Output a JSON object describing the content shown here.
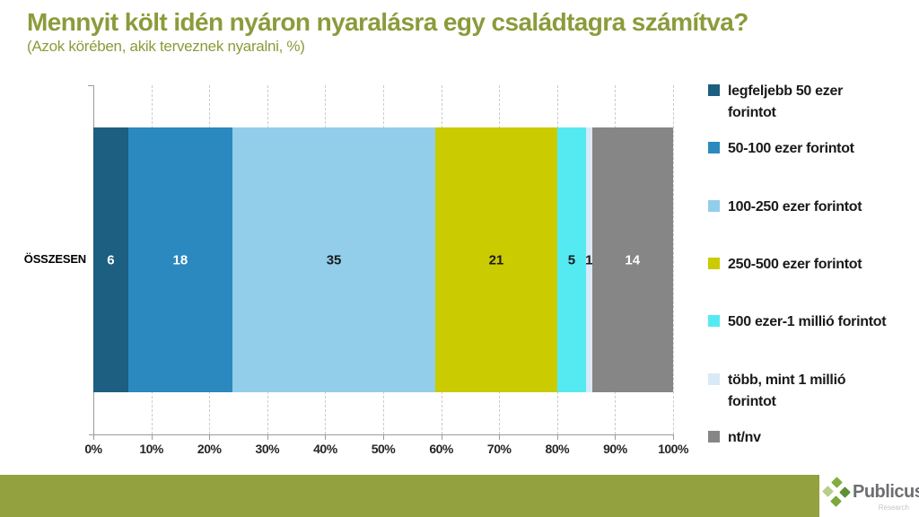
{
  "header": {
    "title": "Mennyit költ idén nyáron nyaralásra egy családtagra számítva?",
    "subtitle": "(Azok körében, akik terveznek nyaralni, %)"
  },
  "chart_data": {
    "type": "bar",
    "orientation": "horizontal-stacked",
    "category": "ÖSSZESEN",
    "series": [
      {
        "name": "legfeljebb 50 ezer forintot",
        "legend_label": "legfeljebb 50 ezer\nforintot",
        "value": 6,
        "color": "#1C5F80",
        "label_color": "#FFFFFF"
      },
      {
        "name": "50-100 ezer forintot",
        "legend_label": "50-100 ezer forintot",
        "value": 18,
        "color": "#2B89BF",
        "label_color": "#FFFFFF"
      },
      {
        "name": "100-250 ezer forintot",
        "legend_label": "100-250 ezer forintot",
        "value": 35,
        "color": "#92CEEA",
        "label_color": "#1A1A1A"
      },
      {
        "name": "250-500 ezer forintot",
        "legend_label": "250-500 ezer forintot",
        "value": 21,
        "color": "#CACB00",
        "label_color": "#1A1A1A"
      },
      {
        "name": "500 ezer-1 millió forintot",
        "legend_label": "500 ezer-1 millió forintot",
        "value": 5,
        "color": "#55EAF2",
        "label_color": "#1A1A1A"
      },
      {
        "name": "több, mint 1 millió forintot",
        "legend_label": "több, mint 1 millió\nforintot",
        "value": 1,
        "color": "#D9E9F6",
        "label_color": "#1A1A1A"
      },
      {
        "name": "nt/nv",
        "legend_label": "nt/nv",
        "value": 14,
        "color": "#868686",
        "label_color": "#FFFFFF"
      }
    ],
    "x_ticks": [
      "0%",
      "10%",
      "20%",
      "30%",
      "40%",
      "50%",
      "60%",
      "70%",
      "80%",
      "90%",
      "100%"
    ],
    "xlim": [
      0,
      100
    ],
    "grid": "vertical-dashed",
    "legend_position": "right",
    "title": "Mennyit költ idén nyáron nyaralásra egy családtagra számítva?",
    "xlabel": "",
    "ylabel": ""
  },
  "footer": {
    "logo_text": "Publicus",
    "logo_subtext": "Research"
  },
  "colors": {
    "title_olive": "#8C9B3B",
    "footer_bar_olive": "#93A13E",
    "axis_gray": "#9B9B9B",
    "grid_gray": "#CBCBCB",
    "logo_diamond_top": "#82AE41",
    "logo_diamond_left": "#B6CE8A",
    "logo_diamond_right": "#5E8F35",
    "logo_diamond_bottom": "#7AA83C",
    "logo_text_gray": "#6D6E71"
  }
}
